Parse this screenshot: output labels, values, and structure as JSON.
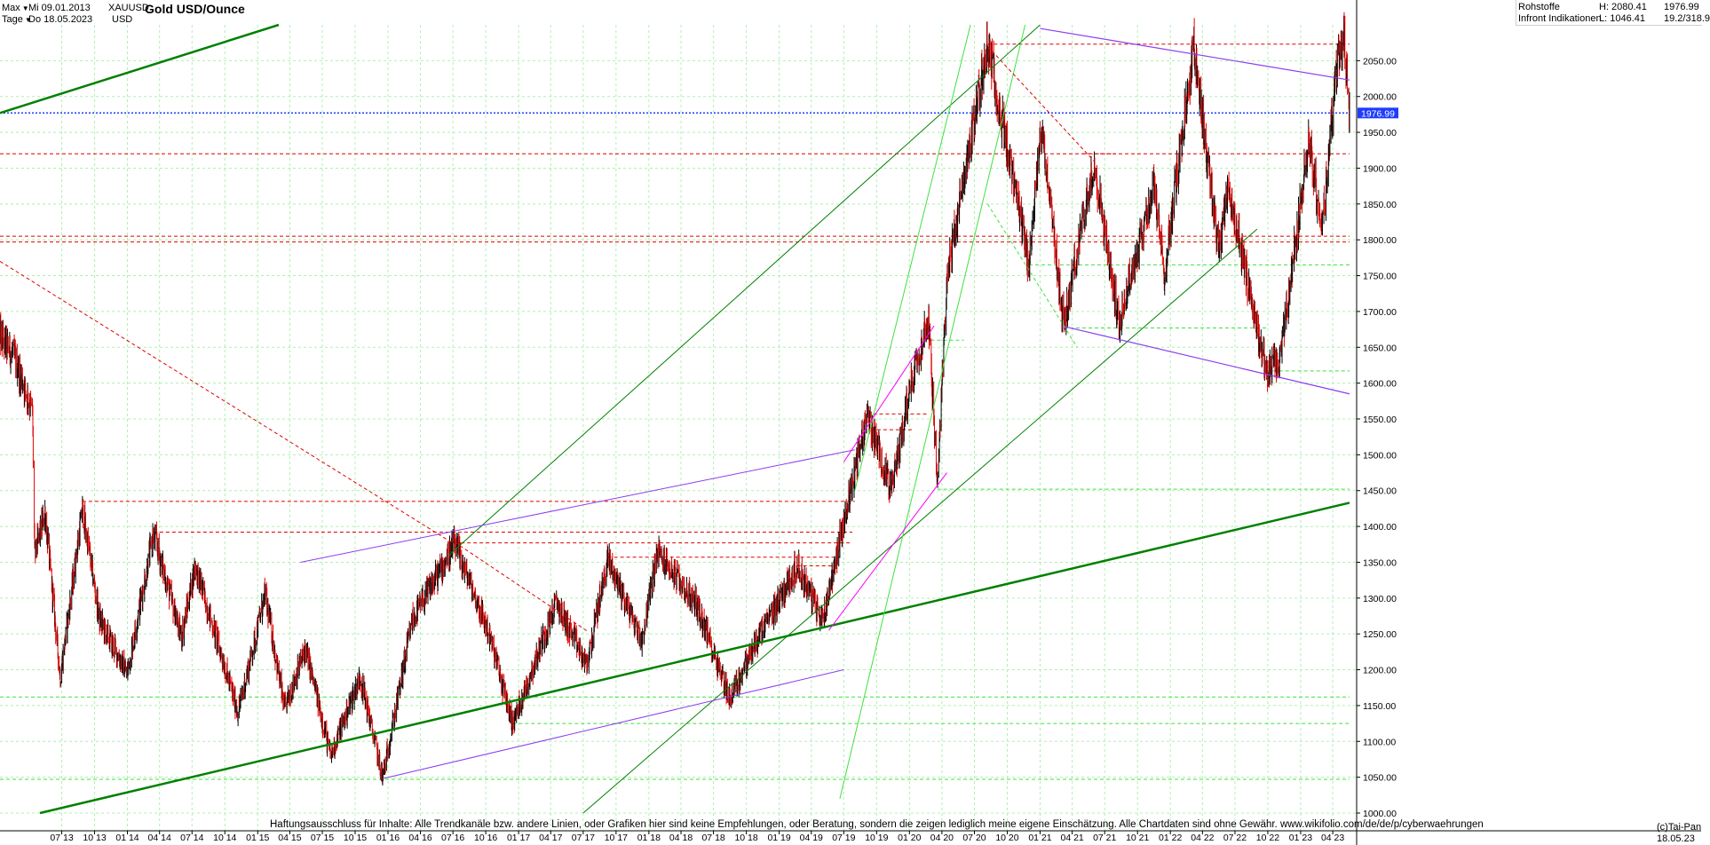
{
  "header": {
    "range_label": "Max",
    "interval_label": "Tage",
    "date_from": "Mi 09.01.2013",
    "date_to": "Do 18.05.2023",
    "symbol": "XAUUSD",
    "currency": "USD",
    "title": "Gold USD/Ounce",
    "category": "Rohstoffe",
    "provider": "Infront Indikationen",
    "high": "H: 2080.41",
    "low": "L: 1046.41",
    "last": "1976.99",
    "extra": "19.2/318.9"
  },
  "footer": {
    "disclaimer": "Haftungsausschluss für Inhalte: Alle Trendkanäle bzw. andere Linien, oder Grafiken hier sind keine Empfehlungen, oder Beratung, sondern die zeigen lediglich meine eigene Einschätzung. Alle Chartdaten sind ohne Gewähr.  www.wikifolio.com/de/de/p/cyberwaehrungen",
    "copyright": "(c)Tai-Pan",
    "end_date": "18.05.23"
  },
  "colors": {
    "up_candle": "#000000",
    "down_candle": "#e00000",
    "grid": "#b0f0b0",
    "trend_green": "#008000",
    "trend_light_green": "#40e040",
    "trend_purple": "#8c3cf0",
    "trend_magenta": "#ff00ff",
    "resistance_red": "#e00000",
    "last_price_line": "#1f3cff",
    "last_price_badge": "#1f3cff"
  },
  "chart_data": {
    "type": "candlestick",
    "title": "Gold USD/Ounce",
    "x_range": [
      "2013-01-09",
      "2023-05-18"
    ],
    "ylim": [
      1000,
      2100
    ],
    "y_ticks": [
      1000,
      1050,
      1100,
      1150,
      1200,
      1250,
      1300,
      1350,
      1400,
      1450,
      1500,
      1550,
      1600,
      1650,
      1700,
      1750,
      1800,
      1850,
      1900,
      1950,
      2000,
      2050
    ],
    "x_ticks": [
      {
        "label": "07 13",
        "date": "2013-07-01"
      },
      {
        "label": "10 13",
        "date": "2013-10-01"
      },
      {
        "label": "01 14",
        "date": "2014-01-01"
      },
      {
        "label": "04 14",
        "date": "2014-04-01"
      },
      {
        "label": "07 14",
        "date": "2014-07-01"
      },
      {
        "label": "10 14",
        "date": "2014-10-01"
      },
      {
        "label": "01 15",
        "date": "2015-01-01"
      },
      {
        "label": "04 15",
        "date": "2015-04-01"
      },
      {
        "label": "07 15",
        "date": "2015-07-01"
      },
      {
        "label": "10 15",
        "date": "2015-10-01"
      },
      {
        "label": "01 16",
        "date": "2016-01-01"
      },
      {
        "label": "04 16",
        "date": "2016-04-01"
      },
      {
        "label": "07 16",
        "date": "2016-07-01"
      },
      {
        "label": "10 16",
        "date": "2016-10-01"
      },
      {
        "label": "01 17",
        "date": "2017-01-01"
      },
      {
        "label": "04 17",
        "date": "2017-04-01"
      },
      {
        "label": "07 17",
        "date": "2017-07-01"
      },
      {
        "label": "10 17",
        "date": "2017-10-01"
      },
      {
        "label": "01 18",
        "date": "2018-01-01"
      },
      {
        "label": "04 18",
        "date": "2018-04-01"
      },
      {
        "label": "07 18",
        "date": "2018-07-01"
      },
      {
        "label": "10 18",
        "date": "2018-10-01"
      },
      {
        "label": "01 19",
        "date": "2019-01-01"
      },
      {
        "label": "04 19",
        "date": "2019-04-01"
      },
      {
        "label": "07 19",
        "date": "2019-07-01"
      },
      {
        "label": "10 19",
        "date": "2019-10-01"
      },
      {
        "label": "01 20",
        "date": "2020-01-01"
      },
      {
        "label": "04 20",
        "date": "2020-04-01"
      },
      {
        "label": "07 20",
        "date": "2020-07-01"
      },
      {
        "label": "10 20",
        "date": "2020-10-01"
      },
      {
        "label": "01 21",
        "date": "2021-01-01"
      },
      {
        "label": "04 21",
        "date": "2021-04-01"
      },
      {
        "label": "07 21",
        "date": "2021-07-01"
      },
      {
        "label": "10 21",
        "date": "2021-10-01"
      },
      {
        "label": "01 22",
        "date": "2022-01-01"
      },
      {
        "label": "04 22",
        "date": "2022-04-01"
      },
      {
        "label": "07 22",
        "date": "2022-07-01"
      },
      {
        "label": "10 22",
        "date": "2022-10-01"
      },
      {
        "label": "01 23",
        "date": "2023-01-01"
      },
      {
        "label": "04 23",
        "date": "2023-04-01"
      }
    ],
    "last_price": 1976.99,
    "price_path": [
      [
        "2013-01-09",
        1665
      ],
      [
        "2013-02-15",
        1640
      ],
      [
        "2013-03-15",
        1600
      ],
      [
        "2013-04-10",
        1560
      ],
      [
        "2013-04-16",
        1360
      ],
      [
        "2013-05-15",
        1420
      ],
      [
        "2013-06-27",
        1190
      ],
      [
        "2013-08-28",
        1425
      ],
      [
        "2013-10-15",
        1270
      ],
      [
        "2013-12-31",
        1195
      ],
      [
        "2014-03-15",
        1390
      ],
      [
        "2014-06-01",
        1245
      ],
      [
        "2014-07-10",
        1345
      ],
      [
        "2014-11-07",
        1140
      ],
      [
        "2015-01-22",
        1305
      ],
      [
        "2015-03-17",
        1145
      ],
      [
        "2015-05-15",
        1230
      ],
      [
        "2015-07-24",
        1080
      ],
      [
        "2015-10-15",
        1190
      ],
      [
        "2015-12-17",
        1050
      ],
      [
        "2016-03-10",
        1270
      ],
      [
        "2016-07-06",
        1375
      ],
      [
        "2016-10-07",
        1255
      ],
      [
        "2016-12-15",
        1125
      ],
      [
        "2017-04-17",
        1295
      ],
      [
        "2017-07-10",
        1205
      ],
      [
        "2017-09-08",
        1355
      ],
      [
        "2017-12-12",
        1240
      ],
      [
        "2018-01-25",
        1365
      ],
      [
        "2018-05-15",
        1290
      ],
      [
        "2018-08-16",
        1160
      ],
      [
        "2018-10-25",
        1235
      ],
      [
        "2019-02-20",
        1345
      ],
      [
        "2019-05-02",
        1270
      ],
      [
        "2019-09-04",
        1555
      ],
      [
        "2019-11-12",
        1450
      ],
      [
        "2020-01-08",
        1610
      ],
      [
        "2020-02-24",
        1690
      ],
      [
        "2020-03-19",
        1450
      ],
      [
        "2020-04-14",
        1745
      ],
      [
        "2020-08-07",
        2075
      ],
      [
        "2020-11-30",
        1765
      ],
      [
        "2021-01-06",
        1960
      ],
      [
        "2021-03-08",
        1680
      ],
      [
        "2021-06-01",
        1910
      ],
      [
        "2021-08-09",
        1685
      ],
      [
        "2021-11-16",
        1875
      ],
      [
        "2021-12-15",
        1755
      ],
      [
        "2022-03-08",
        2070
      ],
      [
        "2022-05-16",
        1785
      ],
      [
        "2022-06-10",
        1875
      ],
      [
        "2022-09-28",
        1615
      ],
      [
        "2022-11-04",
        1630
      ],
      [
        "2023-01-25",
        1945
      ],
      [
        "2023-02-28",
        1805
      ],
      [
        "2023-04-13",
        2045
      ],
      [
        "2023-05-04",
        2080
      ],
      [
        "2023-05-18",
        1977
      ]
    ],
    "horizontal_levels": [
      {
        "value": 2073,
        "color": "#e00000",
        "style": "dashed",
        "from": "2020-08-07",
        "to": "2023-05-18"
      },
      {
        "value": 1976.99,
        "color": "#1f3cff",
        "style": "dotted",
        "from": "2013-01-09",
        "to": "2023-05-18"
      },
      {
        "value": 1920,
        "color": "#e00000",
        "style": "dashed",
        "from": "2013-01-09",
        "to": "2023-05-18"
      },
      {
        "value": 1920,
        "color": "#e00000",
        "style": "dashed",
        "from": "2021-05-01",
        "to": "2021-08-01"
      },
      {
        "value": 1805,
        "color": "#e00000",
        "style": "dashed",
        "from": "2013-01-09",
        "to": "2023-05-18"
      },
      {
        "value": 1797,
        "color": "#e00000",
        "style": "dashed",
        "from": "2013-01-09",
        "to": "2023-05-18"
      },
      {
        "value": 1765,
        "color": "#40e040",
        "style": "dashed",
        "from": "2020-12-01",
        "to": "2023-05-18"
      },
      {
        "value": 1677,
        "color": "#40e040",
        "style": "dashed",
        "from": "2021-03-08",
        "to": "2022-10-01"
      },
      {
        "value": 1617,
        "color": "#40e040",
        "style": "dashed",
        "from": "2022-09-28",
        "to": "2023-05-18"
      },
      {
        "value": 1660,
        "color": "#40e040",
        "style": "dashed",
        "from": "2020-03-01",
        "to": "2020-06-01"
      },
      {
        "value": 1557,
        "color": "#e00000",
        "style": "dashed",
        "from": "2019-09-04",
        "to": "2020-02-24"
      },
      {
        "value": 1535,
        "color": "#e00000",
        "style": "dashed",
        "from": "2019-09-15",
        "to": "2020-01-15"
      },
      {
        "value": 1452,
        "color": "#40e040",
        "style": "dashed",
        "from": "2020-03-19",
        "to": "2023-05-18"
      },
      {
        "value": 1435,
        "color": "#e00000",
        "style": "dashed",
        "from": "2013-08-28",
        "to": "2019-08-01"
      },
      {
        "value": 1392,
        "color": "#e00000",
        "style": "dashed",
        "from": "2014-03-15",
        "to": "2019-07-25"
      },
      {
        "value": 1377,
        "color": "#e00000",
        "style": "dashed",
        "from": "2016-07-06",
        "to": "2019-07-20"
      },
      {
        "value": 1357,
        "color": "#e00000",
        "style": "dashed",
        "from": "2017-09-08",
        "to": "2019-06-20"
      },
      {
        "value": 1345,
        "color": "#e00000",
        "style": "dashed",
        "from": "2019-02-20",
        "to": "2019-06-01"
      },
      {
        "value": 1162,
        "color": "#40e040",
        "style": "dashed",
        "from": "2013-01-09",
        "to": "2023-05-18"
      },
      {
        "value": 1125,
        "color": "#40e040",
        "style": "dashed",
        "from": "2016-12-15",
        "to": "2023-05-18"
      },
      {
        "value": 1047,
        "color": "#40e040",
        "style": "dashed",
        "from": "2013-01-09",
        "to": "2023-05-18"
      }
    ],
    "trendlines": [
      {
        "color": "#008000",
        "width": 2.5,
        "from": [
          "2013-01-09",
          1977
        ],
        "to": [
          "2015-03-01",
          2100
        ]
      },
      {
        "color": "#008000",
        "width": 2.5,
        "from": [
          "2013-05-01",
          1000
        ],
        "to": [
          "2023-05-18",
          1433
        ]
      },
      {
        "color": "#008000",
        "width": 1,
        "from": [
          "2016-06-20",
          1360
        ],
        "to": [
          "2021-01-01",
          2100
        ]
      },
      {
        "color": "#008000",
        "width": 1,
        "from": [
          "2017-07-01",
          1000
        ],
        "to": [
          "2022-09-01",
          1815
        ]
      },
      {
        "color": "#40e040",
        "width": 1,
        "from": [
          "2019-06-20",
          1020
        ],
        "to": [
          "2020-11-20",
          2100
        ]
      },
      {
        "color": "#40e040",
        "width": 1,
        "from": [
          "2019-08-01",
          1450
        ],
        "to": [
          "2020-06-20",
          2100
        ]
      },
      {
        "color": "#8c3cf0",
        "width": 1,
        "from": [
          "2015-12-17",
          1048
        ],
        "to": [
          "2019-07-01",
          1200
        ]
      },
      {
        "color": "#8c3cf0",
        "width": 1,
        "from": [
          "2015-05-01",
          1350
        ],
        "to": [
          "2019-08-01",
          1507
        ]
      },
      {
        "color": "#8c3cf0",
        "width": 1.2,
        "from": [
          "2021-03-01",
          1680
        ],
        "to": [
          "2023-05-18",
          1585
        ]
      },
      {
        "color": "#8c3cf0",
        "width": 1.2,
        "from": [
          "2021-01-01",
          2095
        ],
        "to": [
          "2023-05-18",
          2023
        ]
      },
      {
        "color": "#ff00ff",
        "width": 1,
        "from": [
          "2019-07-01",
          1490
        ],
        "to": [
          "2020-03-10",
          1680
        ]
      },
      {
        "color": "#ff00ff",
        "width": 1,
        "from": [
          "2019-05-20",
          1255
        ],
        "to": [
          "2020-04-15",
          1475
        ]
      },
      {
        "color": "#e00000",
        "width": 1,
        "dash": "4,3",
        "from": [
          "2013-01-09",
          1770
        ],
        "to": [
          "2016-07-06",
          1375
        ]
      },
      {
        "color": "#e00000",
        "width": 1,
        "dash": "4,3",
        "from": [
          "2016-07-06",
          1378
        ],
        "to": [
          "2017-07-15",
          1253
        ]
      },
      {
        "color": "#e00000",
        "width": 1,
        "dash": "4,3",
        "from": [
          "2020-08-07",
          2070
        ],
        "to": [
          "2021-06-01",
          1910
        ]
      },
      {
        "color": "#40e040",
        "width": 1,
        "dash": "4,3",
        "from": [
          "2020-08-07",
          1850
        ],
        "to": [
          "2021-04-15",
          1650
        ]
      }
    ]
  }
}
